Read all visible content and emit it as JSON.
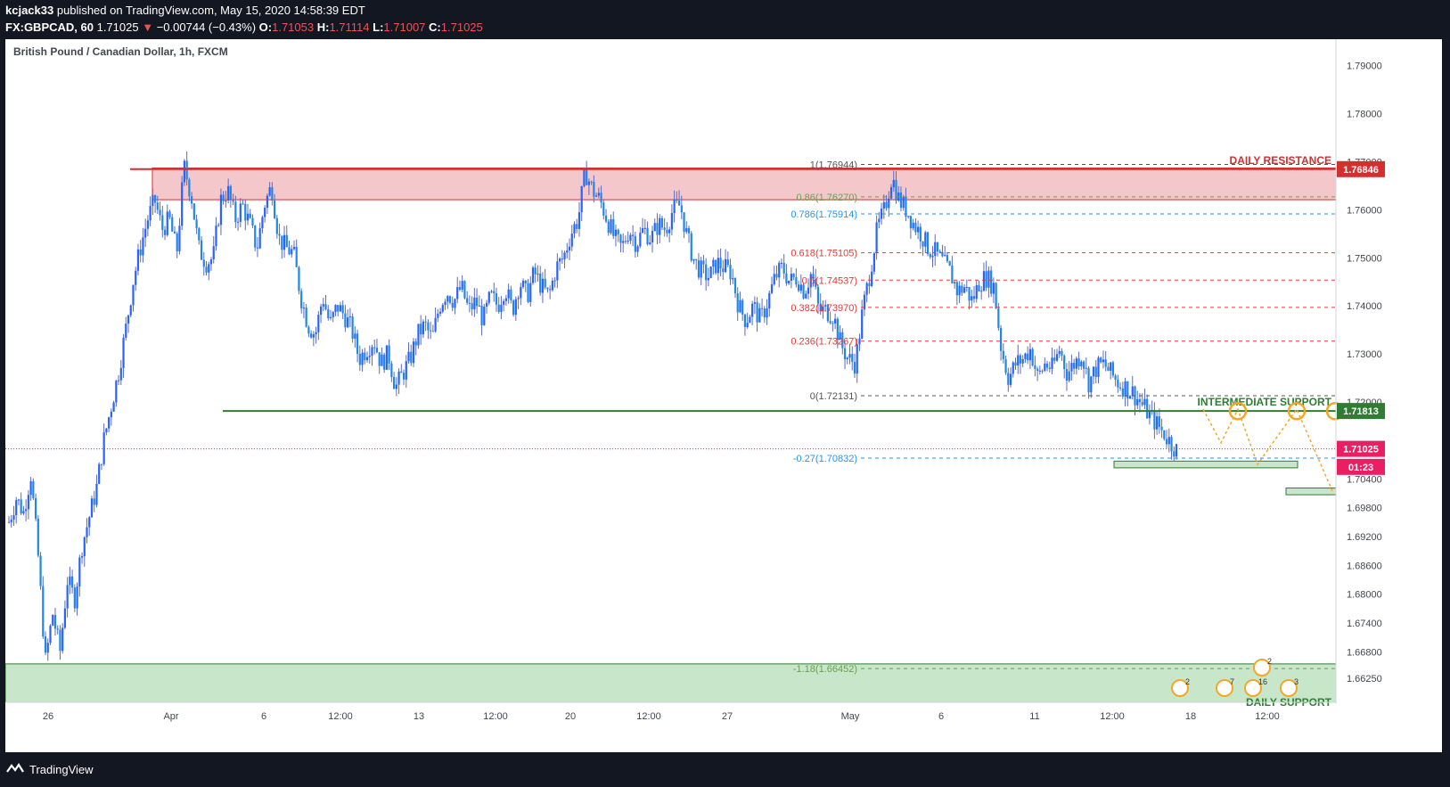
{
  "header": {
    "publisher": "kcjack33",
    "published_text": " published on TradingView.com, May 15, 2020 14:58:39 EDT",
    "symbol": "FX:GBPCAD, 60",
    "last": "1.71025",
    "change_arrow": "▼",
    "change": "−0.00744 (−0.43%)",
    "o_label": "O:",
    "o": "1.71053",
    "h_label": "H:",
    "h": "1.71114",
    "l_label": "L:",
    "l": "1.71007",
    "c_label": "C:",
    "c": "1.71025"
  },
  "chart_title": "British Pound / Canadian Dollar, 1h, FXCM",
  "footer": {
    "brand": "TradingView",
    "logo_icon": "tradingview-logo-icon"
  },
  "colors": {
    "background": "#131722",
    "chart_bg": "#ffffff",
    "candle": "#2962ff",
    "wick": "#5b6abf",
    "resistance": "#d32f2f",
    "support": "#2e7d32",
    "zone_red": "#f4c7cb",
    "zone_green": "#c8e6c9",
    "orange": "#f5a623",
    "pink": "#e91e63"
  },
  "chart_data": {
    "type": "candlestick",
    "symbol": "FX:GBPCAD",
    "timeframe": "1h",
    "y_axis": {
      "ticks": [
        "1.79000",
        "1.78000",
        "1.77000",
        "1.76000",
        "1.75000",
        "1.74000",
        "1.73000",
        "1.72000",
        "1.71025",
        "1.70400",
        "1.69800",
        "1.69200",
        "1.68600",
        "1.68000",
        "1.67400",
        "1.66800",
        "1.66250"
      ],
      "ylim": [
        1.6575,
        1.7955
      ]
    },
    "x_axis": {
      "ticks": [
        "26",
        "Apr",
        "6",
        "12:00",
        "13",
        "12:00",
        "20",
        "12:00",
        "27",
        "May",
        "6",
        "11",
        "12:00",
        "18",
        "12:00"
      ]
    },
    "price_path": [
      1.695,
      1.7,
      1.697,
      1.705,
      1.688,
      1.666,
      1.676,
      1.668,
      1.683,
      1.679,
      1.69,
      1.696,
      1.702,
      1.712,
      1.719,
      1.726,
      1.735,
      1.745,
      1.752,
      1.758,
      1.762,
      1.756,
      1.758,
      1.751,
      1.769,
      1.763,
      1.752,
      1.749,
      1.75,
      1.762,
      1.764,
      1.758,
      1.761,
      1.757,
      1.752,
      1.761,
      1.765,
      1.754,
      1.752,
      1.751,
      1.742,
      1.736,
      1.734,
      1.742,
      1.736,
      1.74,
      1.738,
      1.735,
      1.729,
      1.731,
      1.733,
      1.728,
      1.73,
      1.723,
      1.726,
      1.729,
      1.734,
      1.736,
      1.733,
      1.74,
      1.743,
      1.741,
      1.744,
      1.739,
      1.741,
      1.737,
      1.742,
      1.74,
      1.744,
      1.739,
      1.745,
      1.742,
      1.747,
      1.744,
      1.742,
      1.748,
      1.75,
      1.755,
      1.758,
      1.768,
      1.764,
      1.762,
      1.758,
      1.754,
      1.752,
      1.756,
      1.753,
      1.756,
      1.754,
      1.757,
      1.756,
      1.76,
      1.761,
      1.754,
      1.749,
      1.747,
      1.746,
      1.749,
      1.748,
      1.747,
      1.74,
      1.737,
      1.74,
      1.737,
      1.741,
      1.746,
      1.748,
      1.745,
      1.746,
      1.743,
      1.747,
      1.739,
      1.739,
      1.738,
      1.732,
      1.729,
      1.728,
      1.739,
      1.747,
      1.756,
      1.76,
      1.767,
      1.762,
      1.76,
      1.757,
      1.755,
      1.752,
      1.751,
      1.749,
      1.747,
      1.743,
      1.744,
      1.741,
      1.745,
      1.746,
      1.744,
      1.731,
      1.725,
      1.728,
      1.729,
      1.731,
      1.725,
      1.728,
      1.727,
      1.731,
      1.726,
      1.728,
      1.73,
      1.724,
      1.727,
      1.728,
      1.726,
      1.724,
      1.723,
      1.722,
      1.72,
      1.718,
      1.716,
      1.714,
      1.712,
      1.71
    ],
    "annotations": [
      {
        "label": "DAILY RESISTANCE",
        "type": "horizontal_line",
        "price": 1.76846
      },
      {
        "label": "INTERMEDIATE SUPPORT",
        "type": "horizontal_line",
        "price": 1.71813
      },
      {
        "label": "DAILY SUPPORT",
        "type": "zone",
        "price_from": 1.6575,
        "price_to": 1.6655
      },
      {
        "label": "resistance zone",
        "type": "zone",
        "price_from": 1.7621,
        "price_to": 1.7687
      }
    ],
    "price_labels": [
      {
        "text": "1.76846",
        "price": 1.76846,
        "color": "#d32f2f"
      },
      {
        "text": "1.71813",
        "price": 1.71813,
        "color": "#2e7d32"
      },
      {
        "text": "1.71025",
        "price": 1.71025,
        "color": "#e91e63"
      },
      {
        "text": "01:23",
        "price": 1.7065,
        "color": "#e91e63"
      }
    ],
    "fib_levels": [
      {
        "label": "1(1.76944)",
        "price": 1.76944,
        "color": "#555555"
      },
      {
        "label": "0.86(1.76270)",
        "price": 1.7627,
        "color": "#6a9f4f"
      },
      {
        "label": "0.786(1.75914)",
        "price": 1.75914,
        "color": "#2196f3"
      },
      {
        "label": "0.618(1.75105)",
        "price": 1.75105,
        "color": "#e53935"
      },
      {
        "label": "0.5(1.74537)",
        "price": 1.74537,
        "color": "#e53935"
      },
      {
        "label": "0.382(1.73970)",
        "price": 1.7397,
        "color": "#e53935"
      },
      {
        "label": "0.236(1.73267)",
        "price": 1.73267,
        "color": "#e53935"
      },
      {
        "label": "0(1.72131)",
        "price": 1.72131,
        "color": "#555555"
      },
      {
        "label": "-0.27(1.70832)",
        "price": 1.70832,
        "color": "#2196f3"
      },
      {
        "label": "-1.18(1.66452)",
        "price": 1.66452,
        "color": "#6a9f4f"
      }
    ],
    "event_badges": [
      "2",
      "7",
      "16",
      "2",
      "3"
    ]
  }
}
